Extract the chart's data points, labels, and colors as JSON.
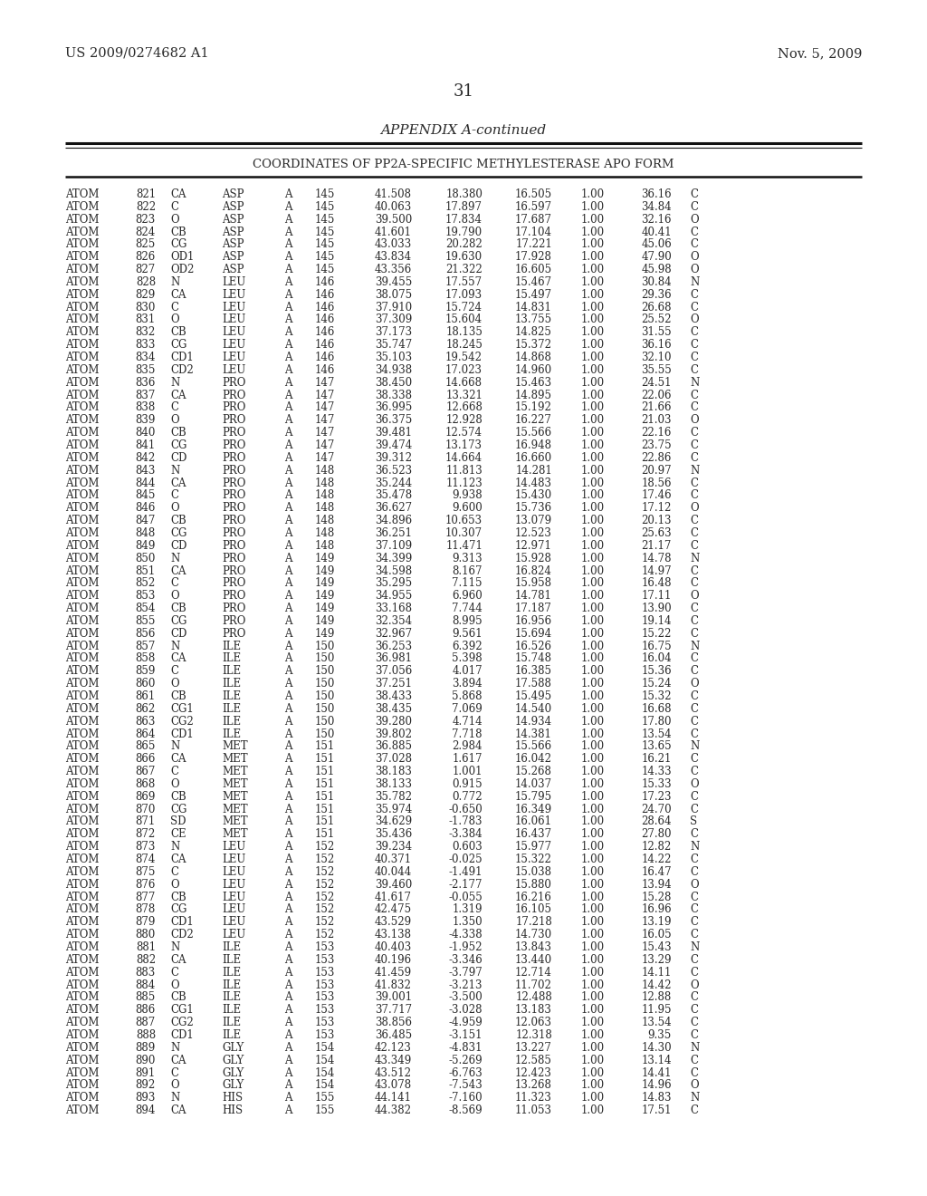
{
  "header_left": "US 2009/0274682 A1",
  "header_right": "Nov. 5, 2009",
  "page_number": "31",
  "appendix_title": "APPENDIX A-continued",
  "table_title": "COORDINATES OF PP2A-SPECIFIC METHYLESTERASE APO FORM",
  "rows": [
    [
      "ATOM",
      "821",
      "CA",
      "ASP",
      "A",
      "145",
      "41.508",
      "18.380",
      "16.505",
      "1.00",
      "36.16",
      "C"
    ],
    [
      "ATOM",
      "822",
      "C",
      "ASP",
      "A",
      "145",
      "40.063",
      "17.897",
      "16.597",
      "1.00",
      "34.84",
      "C"
    ],
    [
      "ATOM",
      "823",
      "O",
      "ASP",
      "A",
      "145",
      "39.500",
      "17.834",
      "17.687",
      "1.00",
      "32.16",
      "O"
    ],
    [
      "ATOM",
      "824",
      "CB",
      "ASP",
      "A",
      "145",
      "41.601",
      "19.790",
      "17.104",
      "1.00",
      "40.41",
      "C"
    ],
    [
      "ATOM",
      "825",
      "CG",
      "ASP",
      "A",
      "145",
      "43.033",
      "20.282",
      "17.221",
      "1.00",
      "45.06",
      "C"
    ],
    [
      "ATOM",
      "826",
      "OD1",
      "ASP",
      "A",
      "145",
      "43.834",
      "19.630",
      "17.928",
      "1.00",
      "47.90",
      "O"
    ],
    [
      "ATOM",
      "827",
      "OD2",
      "ASP",
      "A",
      "145",
      "43.356",
      "21.322",
      "16.605",
      "1.00",
      "45.98",
      "O"
    ],
    [
      "ATOM",
      "828",
      "N",
      "LEU",
      "A",
      "146",
      "39.455",
      "17.557",
      "15.467",
      "1.00",
      "30.84",
      "N"
    ],
    [
      "ATOM",
      "829",
      "CA",
      "LEU",
      "A",
      "146",
      "38.075",
      "17.093",
      "15.497",
      "1.00",
      "29.36",
      "C"
    ],
    [
      "ATOM",
      "830",
      "C",
      "LEU",
      "A",
      "146",
      "37.910",
      "15.724",
      "14.831",
      "1.00",
      "26.68",
      "C"
    ],
    [
      "ATOM",
      "831",
      "O",
      "LEU",
      "A",
      "146",
      "37.309",
      "15.604",
      "13.755",
      "1.00",
      "25.52",
      "O"
    ],
    [
      "ATOM",
      "832",
      "CB",
      "LEU",
      "A",
      "146",
      "37.173",
      "18.135",
      "14.825",
      "1.00",
      "31.55",
      "C"
    ],
    [
      "ATOM",
      "833",
      "CG",
      "LEU",
      "A",
      "146",
      "35.747",
      "18.245",
      "15.372",
      "1.00",
      "36.16",
      "C"
    ],
    [
      "ATOM",
      "834",
      "CD1",
      "LEU",
      "A",
      "146",
      "35.103",
      "19.542",
      "14.868",
      "1.00",
      "32.10",
      "C"
    ],
    [
      "ATOM",
      "835",
      "CD2",
      "LEU",
      "A",
      "146",
      "34.938",
      "17.023",
      "14.960",
      "1.00",
      "35.55",
      "C"
    ],
    [
      "ATOM",
      "836",
      "N",
      "PRO",
      "A",
      "147",
      "38.450",
      "14.668",
      "15.463",
      "1.00",
      "24.51",
      "N"
    ],
    [
      "ATOM",
      "837",
      "CA",
      "PRO",
      "A",
      "147",
      "38.338",
      "13.321",
      "14.895",
      "1.00",
      "22.06",
      "C"
    ],
    [
      "ATOM",
      "838",
      "C",
      "PRO",
      "A",
      "147",
      "36.995",
      "12.668",
      "15.192",
      "1.00",
      "21.66",
      "C"
    ],
    [
      "ATOM",
      "839",
      "O",
      "PRO",
      "A",
      "147",
      "36.375",
      "12.928",
      "16.227",
      "1.00",
      "21.03",
      "O"
    ],
    [
      "ATOM",
      "840",
      "CB",
      "PRO",
      "A",
      "147",
      "39.481",
      "12.574",
      "15.566",
      "1.00",
      "22.16",
      "C"
    ],
    [
      "ATOM",
      "841",
      "CG",
      "PRO",
      "A",
      "147",
      "39.474",
      "13.173",
      "16.948",
      "1.00",
      "23.75",
      "C"
    ],
    [
      "ATOM",
      "842",
      "CD",
      "PRO",
      "A",
      "147",
      "39.312",
      "14.664",
      "16.660",
      "1.00",
      "22.86",
      "C"
    ],
    [
      "ATOM",
      "843",
      "N",
      "PRO",
      "A",
      "148",
      "36.523",
      "11.813",
      "14.281",
      "1.00",
      "20.97",
      "N"
    ],
    [
      "ATOM",
      "844",
      "CA",
      "PRO",
      "A",
      "148",
      "35.244",
      "11.123",
      "14.483",
      "1.00",
      "18.56",
      "C"
    ],
    [
      "ATOM",
      "845",
      "C",
      "PRO",
      "A",
      "148",
      "35.478",
      "9.938",
      "15.430",
      "1.00",
      "17.46",
      "C"
    ],
    [
      "ATOM",
      "846",
      "O",
      "PRO",
      "A",
      "148",
      "36.627",
      "9.600",
      "15.736",
      "1.00",
      "17.12",
      "O"
    ],
    [
      "ATOM",
      "847",
      "CB",
      "PRO",
      "A",
      "148",
      "34.896",
      "10.653",
      "13.079",
      "1.00",
      "20.13",
      "C"
    ],
    [
      "ATOM",
      "848",
      "CG",
      "PRO",
      "A",
      "148",
      "36.251",
      "10.307",
      "12.523",
      "1.00",
      "25.63",
      "C"
    ],
    [
      "ATOM",
      "849",
      "CD",
      "PRO",
      "A",
      "148",
      "37.109",
      "11.471",
      "12.971",
      "1.00",
      "21.17",
      "C"
    ],
    [
      "ATOM",
      "850",
      "N",
      "PRO",
      "A",
      "149",
      "34.399",
      "9.313",
      "15.928",
      "1.00",
      "14.78",
      "N"
    ],
    [
      "ATOM",
      "851",
      "CA",
      "PRO",
      "A",
      "149",
      "34.598",
      "8.167",
      "16.824",
      "1.00",
      "14.97",
      "C"
    ],
    [
      "ATOM",
      "852",
      "C",
      "PRO",
      "A",
      "149",
      "35.295",
      "7.115",
      "15.958",
      "1.00",
      "16.48",
      "C"
    ],
    [
      "ATOM",
      "853",
      "O",
      "PRO",
      "A",
      "149",
      "34.955",
      "6.960",
      "14.781",
      "1.00",
      "17.11",
      "O"
    ],
    [
      "ATOM",
      "854",
      "CB",
      "PRO",
      "A",
      "149",
      "33.168",
      "7.744",
      "17.187",
      "1.00",
      "13.90",
      "C"
    ],
    [
      "ATOM",
      "855",
      "CG",
      "PRO",
      "A",
      "149",
      "32.354",
      "8.995",
      "16.956",
      "1.00",
      "19.14",
      "C"
    ],
    [
      "ATOM",
      "856",
      "CD",
      "PRO",
      "A",
      "149",
      "32.967",
      "9.561",
      "15.694",
      "1.00",
      "15.22",
      "C"
    ],
    [
      "ATOM",
      "857",
      "N",
      "ILE",
      "A",
      "150",
      "36.253",
      "6.392",
      "16.526",
      "1.00",
      "16.75",
      "N"
    ],
    [
      "ATOM",
      "858",
      "CA",
      "ILE",
      "A",
      "150",
      "36.981",
      "5.398",
      "15.748",
      "1.00",
      "16.04",
      "C"
    ],
    [
      "ATOM",
      "859",
      "C",
      "ILE",
      "A",
      "150",
      "37.056",
      "4.017",
      "16.385",
      "1.00",
      "15.36",
      "C"
    ],
    [
      "ATOM",
      "860",
      "O",
      "ILE",
      "A",
      "150",
      "37.251",
      "3.894",
      "17.588",
      "1.00",
      "15.24",
      "O"
    ],
    [
      "ATOM",
      "861",
      "CB",
      "ILE",
      "A",
      "150",
      "38.433",
      "5.868",
      "15.495",
      "1.00",
      "15.32",
      "C"
    ],
    [
      "ATOM",
      "862",
      "CG1",
      "ILE",
      "A",
      "150",
      "38.435",
      "7.069",
      "14.540",
      "1.00",
      "16.68",
      "C"
    ],
    [
      "ATOM",
      "863",
      "CG2",
      "ILE",
      "A",
      "150",
      "39.280",
      "4.714",
      "14.934",
      "1.00",
      "17.80",
      "C"
    ],
    [
      "ATOM",
      "864",
      "CD1",
      "ILE",
      "A",
      "150",
      "39.802",
      "7.718",
      "14.381",
      "1.00",
      "13.54",
      "C"
    ],
    [
      "ATOM",
      "865",
      "N",
      "MET",
      "A",
      "151",
      "36.885",
      "2.984",
      "15.566",
      "1.00",
      "13.65",
      "N"
    ],
    [
      "ATOM",
      "866",
      "CA",
      "MET",
      "A",
      "151",
      "37.028",
      "1.617",
      "16.042",
      "1.00",
      "16.21",
      "C"
    ],
    [
      "ATOM",
      "867",
      "C",
      "MET",
      "A",
      "151",
      "38.183",
      "1.001",
      "15.268",
      "1.00",
      "14.33",
      "C"
    ],
    [
      "ATOM",
      "868",
      "O",
      "MET",
      "A",
      "151",
      "38.133",
      "0.915",
      "14.037",
      "1.00",
      "15.33",
      "O"
    ],
    [
      "ATOM",
      "869",
      "CB",
      "MET",
      "A",
      "151",
      "35.782",
      "0.772",
      "15.795",
      "1.00",
      "17.23",
      "C"
    ],
    [
      "ATOM",
      "870",
      "CG",
      "MET",
      "A",
      "151",
      "35.974",
      "-0.650",
      "16.349",
      "1.00",
      "24.70",
      "C"
    ],
    [
      "ATOM",
      "871",
      "SD",
      "MET",
      "A",
      "151",
      "34.629",
      "-1.783",
      "16.061",
      "1.00",
      "28.64",
      "S"
    ],
    [
      "ATOM",
      "872",
      "CE",
      "MET",
      "A",
      "151",
      "35.436",
      "-3.384",
      "16.437",
      "1.00",
      "27.80",
      "C"
    ],
    [
      "ATOM",
      "873",
      "N",
      "LEU",
      "A",
      "152",
      "39.234",
      "0.603",
      "15.977",
      "1.00",
      "12.82",
      "N"
    ],
    [
      "ATOM",
      "874",
      "CA",
      "LEU",
      "A",
      "152",
      "40.371",
      "-0.025",
      "15.322",
      "1.00",
      "14.22",
      "C"
    ],
    [
      "ATOM",
      "875",
      "C",
      "LEU",
      "A",
      "152",
      "40.044",
      "-1.491",
      "15.038",
      "1.00",
      "16.47",
      "C"
    ],
    [
      "ATOM",
      "876",
      "O",
      "LEU",
      "A",
      "152",
      "39.460",
      "-2.177",
      "15.880",
      "1.00",
      "13.94",
      "O"
    ],
    [
      "ATOM",
      "877",
      "CB",
      "LEU",
      "A",
      "152",
      "41.617",
      "-0.055",
      "16.216",
      "1.00",
      "15.28",
      "C"
    ],
    [
      "ATOM",
      "878",
      "CG",
      "LEU",
      "A",
      "152",
      "42.475",
      "1.319",
      "16.105",
      "1.00",
      "16.96",
      "C"
    ],
    [
      "ATOM",
      "879",
      "CD1",
      "LEU",
      "A",
      "152",
      "43.529",
      "1.350",
      "17.218",
      "1.00",
      "13.19",
      "C"
    ],
    [
      "ATOM",
      "880",
      "CD2",
      "LEU",
      "A",
      "152",
      "43.138",
      "-4.338",
      "14.730",
      "1.00",
      "16.05",
      "C"
    ],
    [
      "ATOM",
      "881",
      "N",
      "ILE",
      "A",
      "153",
      "40.403",
      "-1.952",
      "13.843",
      "1.00",
      "15.43",
      "N"
    ],
    [
      "ATOM",
      "882",
      "CA",
      "ILE",
      "A",
      "153",
      "40.196",
      "-3.346",
      "13.440",
      "1.00",
      "13.29",
      "C"
    ],
    [
      "ATOM",
      "883",
      "C",
      "ILE",
      "A",
      "153",
      "41.459",
      "-3.797",
      "12.714",
      "1.00",
      "14.11",
      "C"
    ],
    [
      "ATOM",
      "884",
      "O",
      "ILE",
      "A",
      "153",
      "41.832",
      "-3.213",
      "11.702",
      "1.00",
      "14.42",
      "O"
    ],
    [
      "ATOM",
      "885",
      "CB",
      "ILE",
      "A",
      "153",
      "39.001",
      "-3.500",
      "12.488",
      "1.00",
      "12.88",
      "C"
    ],
    [
      "ATOM",
      "886",
      "CG1",
      "ILE",
      "A",
      "153",
      "37.717",
      "-3.028",
      "13.183",
      "1.00",
      "11.95",
      "C"
    ],
    [
      "ATOM",
      "887",
      "CG2",
      "ILE",
      "A",
      "153",
      "38.856",
      "-4.959",
      "12.063",
      "1.00",
      "13.54",
      "C"
    ],
    [
      "ATOM",
      "888",
      "CD1",
      "ILE",
      "A",
      "153",
      "36.485",
      "-3.151",
      "12.318",
      "1.00",
      "9.35",
      "C"
    ],
    [
      "ATOM",
      "889",
      "N",
      "GLY",
      "A",
      "154",
      "42.123",
      "-4.831",
      "13.227",
      "1.00",
      "14.30",
      "N"
    ],
    [
      "ATOM",
      "890",
      "CA",
      "GLY",
      "A",
      "154",
      "43.349",
      "-5.269",
      "12.585",
      "1.00",
      "13.14",
      "C"
    ],
    [
      "ATOM",
      "891",
      "C",
      "GLY",
      "A",
      "154",
      "43.512",
      "-6.763",
      "12.423",
      "1.00",
      "14.41",
      "C"
    ],
    [
      "ATOM",
      "892",
      "O",
      "GLY",
      "A",
      "154",
      "43.078",
      "-7.543",
      "13.268",
      "1.00",
      "14.96",
      "O"
    ],
    [
      "ATOM",
      "893",
      "N",
      "HIS",
      "A",
      "155",
      "44.141",
      "-7.160",
      "11.323",
      "1.00",
      "14.83",
      "N"
    ],
    [
      "ATOM",
      "894",
      "CA",
      "HIS",
      "A",
      "155",
      "44.382",
      "-8.569",
      "11.053",
      "1.00",
      "17.51",
      "C"
    ]
  ]
}
